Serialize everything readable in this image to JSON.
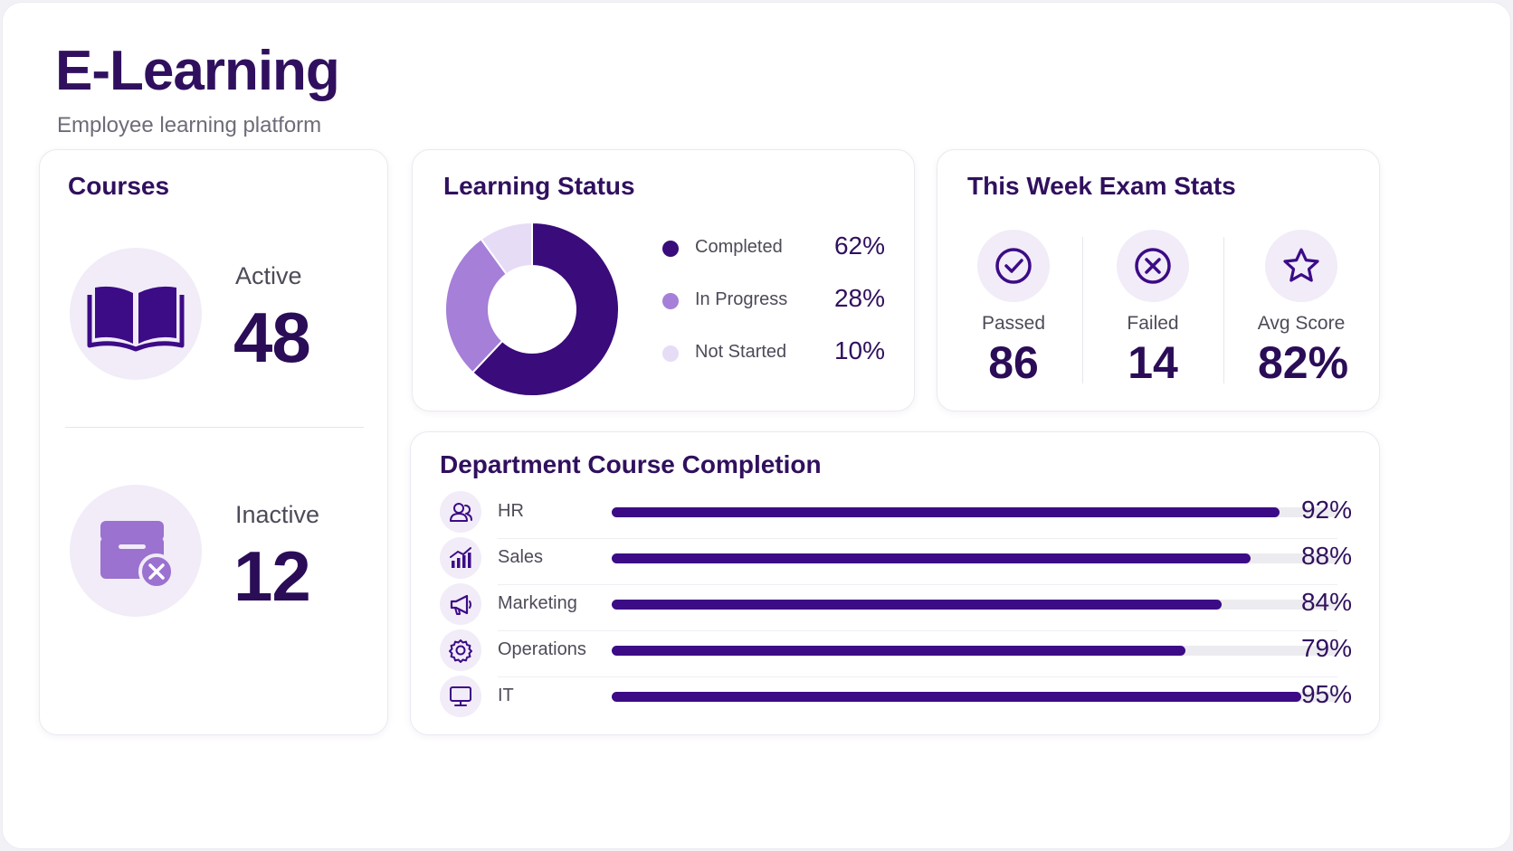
{
  "header": {
    "title": "E-Learning",
    "subtitle": "Employee learning platform"
  },
  "courses": {
    "title": "Courses",
    "active": {
      "label": "Active",
      "value": "48",
      "icon": "book-open-icon"
    },
    "inactive": {
      "label": "Inactive",
      "value": "12",
      "icon": "archive-x-icon"
    }
  },
  "learning_status": {
    "title": "Learning Status",
    "items": [
      {
        "label": "Completed",
        "pct_text": "62%",
        "value": 62,
        "color": "#3a0b7a"
      },
      {
        "label": "In Progress",
        "pct_text": "28%",
        "value": 28,
        "color": "#a57fd8"
      },
      {
        "label": "Not Started",
        "pct_text": "10%",
        "value": 10,
        "color": "#e6dcf6"
      }
    ]
  },
  "exam_stats": {
    "title": "This Week Exam Stats",
    "items": [
      {
        "label": "Passed",
        "value": "86",
        "icon": "check-circle-icon"
      },
      {
        "label": "Failed",
        "value": "14",
        "icon": "x-circle-icon"
      },
      {
        "label": "Avg Score",
        "value": "82%",
        "icon": "star-icon"
      }
    ]
  },
  "department_completion": {
    "title": "Department Course Completion",
    "rows": [
      {
        "name": "HR",
        "pct_text": "92%",
        "value": 92,
        "icon": "users-icon"
      },
      {
        "name": "Sales",
        "pct_text": "88%",
        "value": 88,
        "icon": "chart-icon"
      },
      {
        "name": "Marketing",
        "pct_text": "84%",
        "value": 84,
        "icon": "megaphone-icon"
      },
      {
        "name": "Operations",
        "pct_text": "79%",
        "value": 79,
        "icon": "gear-icon"
      },
      {
        "name": "IT",
        "pct_text": "95%",
        "value": 95,
        "icon": "monitor-icon"
      }
    ]
  },
  "colors": {
    "primary": "#3c0b86",
    "primary_light": "#a57fd8",
    "primary_pale": "#e6dcf6",
    "icon_bg": "#f1ecf8"
  }
}
